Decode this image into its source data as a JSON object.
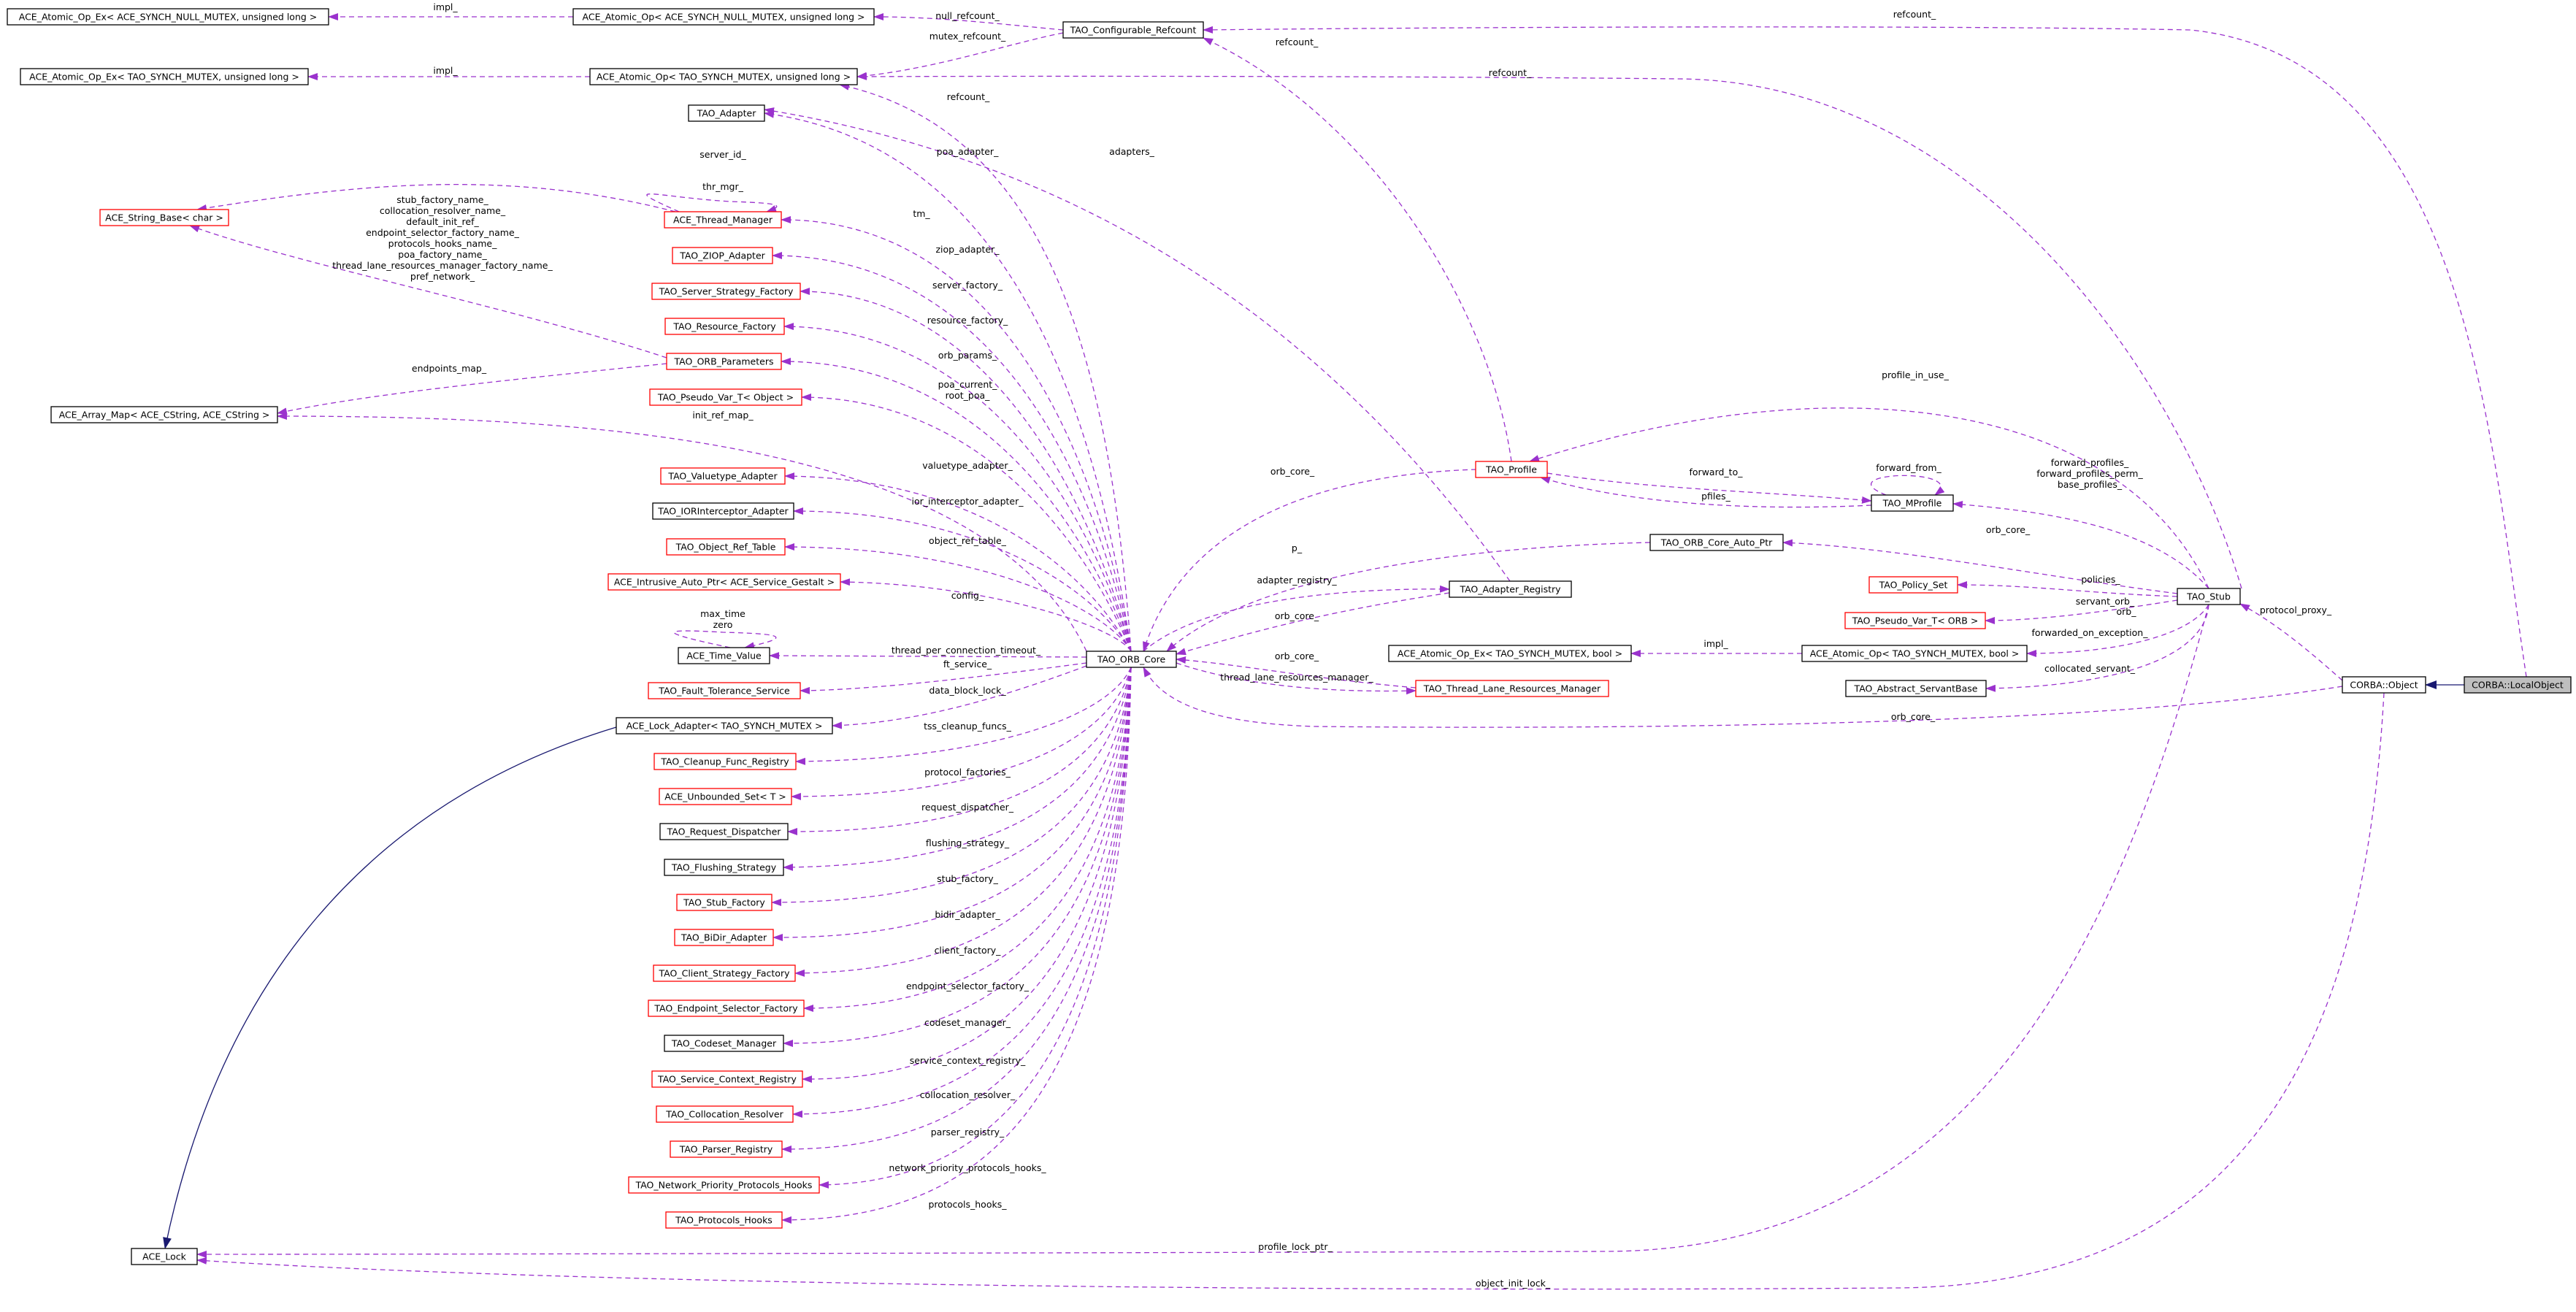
{
  "colors": {
    "class_border_complete": "#000000",
    "class_border_incomplete": "#ff0000",
    "focus_fill": "#bfbfbf",
    "dependency_edge": "#9a32cd",
    "inheritance_edge": "#191970"
  },
  "diagram": {
    "nodes": [
      {
        "id": "ace_aoe_null",
        "label": "ACE_Atomic_Op_Ex< ACE_SYNCH_NULL_MUTEX, unsigned long >",
        "style": "complete"
      },
      {
        "id": "ace_ao_null",
        "label": "ACE_Atomic_Op< ACE_SYNCH_NULL_MUTEX, unsigned long >",
        "style": "complete"
      },
      {
        "id": "tao_configurable_refcount",
        "label": "TAO_Configurable_Refcount",
        "style": "complete"
      },
      {
        "id": "ace_aoe_synch",
        "label": "ACE_Atomic_Op_Ex< TAO_SYNCH_MUTEX, unsigned long >",
        "style": "complete"
      },
      {
        "id": "ace_ao_synch",
        "label": "ACE_Atomic_Op< TAO_SYNCH_MUTEX, unsigned long >",
        "style": "complete"
      },
      {
        "id": "tao_adapter",
        "label": "TAO_Adapter",
        "style": "complete"
      },
      {
        "id": "ace_string_base",
        "label": "ACE_String_Base< char >",
        "style": "incomplete"
      },
      {
        "id": "ace_thread_manager",
        "label": "ACE_Thread_Manager",
        "style": "incomplete"
      },
      {
        "id": "tao_ziop_adapter",
        "label": "TAO_ZIOP_Adapter",
        "style": "incomplete"
      },
      {
        "id": "tao_server_strategy_factory",
        "label": "TAO_Server_Strategy_Factory",
        "style": "incomplete"
      },
      {
        "id": "tao_resource_factory",
        "label": "TAO_Resource_Factory",
        "style": "incomplete"
      },
      {
        "id": "tao_orb_parameters",
        "label": "TAO_ORB_Parameters",
        "style": "incomplete"
      },
      {
        "id": "ace_array_map",
        "label": "ACE_Array_Map< ACE_CString, ACE_CString >",
        "style": "complete"
      },
      {
        "id": "tao_pseudo_var_object",
        "label": "TAO_Pseudo_Var_T< Object >",
        "style": "incomplete"
      },
      {
        "id": "tao_valuetype_adapter",
        "label": "TAO_Valuetype_Adapter",
        "style": "incomplete"
      },
      {
        "id": "tao_ior_interceptor_adapter",
        "label": "TAO_IORInterceptor_Adapter",
        "style": "complete"
      },
      {
        "id": "tao_object_ref_table",
        "label": "TAO_Object_Ref_Table",
        "style": "incomplete"
      },
      {
        "id": "ace_intrusive_auto_ptr",
        "label": "ACE_Intrusive_Auto_Ptr< ACE_Service_Gestalt >",
        "style": "incomplete"
      },
      {
        "id": "ace_time_value",
        "label": "ACE_Time_Value",
        "style": "complete"
      },
      {
        "id": "tao_fault_tolerance_service",
        "label": "TAO_Fault_Tolerance_Service",
        "style": "incomplete"
      },
      {
        "id": "ace_lock_adapter",
        "label": "ACE_Lock_Adapter< TAO_SYNCH_MUTEX >",
        "style": "complete"
      },
      {
        "id": "tao_cleanup_func_registry",
        "label": "TAO_Cleanup_Func_Registry",
        "style": "incomplete"
      },
      {
        "id": "ace_unbounded_set",
        "label": "ACE_Unbounded_Set< T >",
        "style": "incomplete"
      },
      {
        "id": "tao_request_dispatcher",
        "label": "TAO_Request_Dispatcher",
        "style": "complete"
      },
      {
        "id": "tao_flushing_strategy",
        "label": "TAO_Flushing_Strategy",
        "style": "complete"
      },
      {
        "id": "tao_stub_factory",
        "label": "TAO_Stub_Factory",
        "style": "incomplete"
      },
      {
        "id": "tao_bidir_adapter",
        "label": "TAO_BiDir_Adapter",
        "style": "incomplete"
      },
      {
        "id": "tao_client_strategy_factory",
        "label": "TAO_Client_Strategy_Factory",
        "style": "incomplete"
      },
      {
        "id": "tao_endpoint_selector_factory",
        "label": "TAO_Endpoint_Selector_Factory",
        "style": "incomplete"
      },
      {
        "id": "tao_codeset_manager",
        "label": "TAO_Codeset_Manager",
        "style": "complete"
      },
      {
        "id": "tao_service_context_registry",
        "label": "TAO_Service_Context_Registry",
        "style": "incomplete"
      },
      {
        "id": "tao_collocation_resolver",
        "label": "TAO_Collocation_Resolver",
        "style": "incomplete"
      },
      {
        "id": "tao_parser_registry",
        "label": "TAO_Parser_Registry",
        "style": "incomplete"
      },
      {
        "id": "tao_network_priority_protocols_hooks",
        "label": "TAO_Network_Priority_Protocols_Hooks",
        "style": "incomplete"
      },
      {
        "id": "tao_protocols_hooks",
        "label": "TAO_Protocols_Hooks",
        "style": "incomplete"
      },
      {
        "id": "ace_lock",
        "label": "ACE_Lock",
        "style": "complete"
      },
      {
        "id": "tao_orb_core",
        "label": "TAO_ORB_Core",
        "style": "complete"
      },
      {
        "id": "tao_profile",
        "label": "TAO_Profile",
        "style": "incomplete"
      },
      {
        "id": "tao_mprofile",
        "label": "TAO_MProfile",
        "style": "complete"
      },
      {
        "id": "tao_orb_core_auto_ptr",
        "label": "TAO_ORB_Core_Auto_Ptr",
        "style": "complete"
      },
      {
        "id": "tao_adapter_registry",
        "label": "TAO_Adapter_Registry",
        "style": "complete"
      },
      {
        "id": "tao_thread_lane_resources_manager",
        "label": "TAO_Thread_Lane_Resources_Manager",
        "style": "incomplete"
      },
      {
        "id": "ace_aoe_bool",
        "label": "ACE_Atomic_Op_Ex< TAO_SYNCH_MUTEX, bool >",
        "style": "complete"
      },
      {
        "id": "ace_ao_bool",
        "label": "ACE_Atomic_Op< TAO_SYNCH_MUTEX, bool >",
        "style": "complete"
      },
      {
        "id": "tao_policy_set",
        "label": "TAO_Policy_Set",
        "style": "incomplete"
      },
      {
        "id": "tao_pseudo_var_orb",
        "label": "TAO_Pseudo_Var_T< ORB >",
        "style": "incomplete"
      },
      {
        "id": "tao_abstract_servantbase",
        "label": "TAO_Abstract_ServantBase",
        "style": "complete"
      },
      {
        "id": "tao_stub",
        "label": "TAO_Stub",
        "style": "complete"
      },
      {
        "id": "corba_object",
        "label": "CORBA::Object",
        "style": "complete"
      },
      {
        "id": "corba_localobject",
        "label": "CORBA::LocalObject",
        "style": "focus"
      }
    ],
    "edge_labels": [
      {
        "id": "el_impl_1",
        "text": "impl_"
      },
      {
        "id": "el_null_refcount",
        "text": "null_refcount_"
      },
      {
        "id": "el_refcount_top",
        "text": "refcount_"
      },
      {
        "id": "el_impl_2",
        "text": "impl_"
      },
      {
        "id": "el_mutex_refcount",
        "text": "mutex_refcount_"
      },
      {
        "id": "el_refcount_mid",
        "text": "refcount_"
      },
      {
        "id": "el_refcount_prof",
        "text": "refcount_"
      },
      {
        "id": "el_refcount_orb",
        "text": "refcount_"
      },
      {
        "id": "el_poa_adapter",
        "text": "poa_adapter_"
      },
      {
        "id": "el_adapters",
        "text": "adapters_"
      },
      {
        "id": "el_server_id",
        "text": "server_id_"
      },
      {
        "id": "el_thr_mgr",
        "text": "thr_mgr_"
      },
      {
        "id": "el_tm",
        "text": "tm_"
      },
      {
        "id": "el_strparams_1",
        "text": "stub_factory_name_"
      },
      {
        "id": "el_strparams_2",
        "text": "collocation_resolver_name_"
      },
      {
        "id": "el_strparams_3",
        "text": "default_init_ref_"
      },
      {
        "id": "el_strparams_4",
        "text": "endpoint_selector_factory_name_"
      },
      {
        "id": "el_strparams_5",
        "text": "protocols_hooks_name_"
      },
      {
        "id": "el_strparams_6",
        "text": "poa_factory_name_"
      },
      {
        "id": "el_strparams_7",
        "text": "thread_lane_resources_manager_factory_name_"
      },
      {
        "id": "el_strparams_8",
        "text": "pref_network_"
      },
      {
        "id": "el_ziop_adapter",
        "text": "ziop_adapter_"
      },
      {
        "id": "el_server_factory",
        "text": "server_factory_"
      },
      {
        "id": "el_resource_factory",
        "text": "resource_factory_"
      },
      {
        "id": "el_orb_params",
        "text": "orb_params_"
      },
      {
        "id": "el_endpoints_map",
        "text": "endpoints_map_"
      },
      {
        "id": "el_poa_current",
        "text": "poa_current_"
      },
      {
        "id": "el_root_poa",
        "text": "root_poa_"
      },
      {
        "id": "el_init_ref_map",
        "text": "init_ref_map_"
      },
      {
        "id": "el_valuetype_adapter",
        "text": "valuetype_adapter_"
      },
      {
        "id": "el_ior_interceptor_adapter",
        "text": "ior_interceptor_adapter_"
      },
      {
        "id": "el_object_ref_table",
        "text": "object_ref_table_"
      },
      {
        "id": "el_config",
        "text": "config_"
      },
      {
        "id": "el_max_time",
        "text": "max_time"
      },
      {
        "id": "el_zero",
        "text": "zero"
      },
      {
        "id": "el_thread_per_connection_timeout",
        "text": "thread_per_connection_timeout_"
      },
      {
        "id": "el_ft_service",
        "text": "ft_service_"
      },
      {
        "id": "el_data_block_lock",
        "text": "data_block_lock_"
      },
      {
        "id": "el_tss_cleanup_funcs",
        "text": "tss_cleanup_funcs_"
      },
      {
        "id": "el_protocol_factories",
        "text": "protocol_factories_"
      },
      {
        "id": "el_request_dispatcher",
        "text": "request_dispatcher_"
      },
      {
        "id": "el_flushing_strategy",
        "text": "flushing_strategy_"
      },
      {
        "id": "el_stub_factory",
        "text": "stub_factory_"
      },
      {
        "id": "el_bidir_adapter",
        "text": "bidir_adapter_"
      },
      {
        "id": "el_client_factory",
        "text": "client_factory_"
      },
      {
        "id": "el_endpoint_selector_factory",
        "text": "endpoint_selector_factory_"
      },
      {
        "id": "el_codeset_manager",
        "text": "codeset_manager_"
      },
      {
        "id": "el_service_context_registry",
        "text": "service_context_registry_"
      },
      {
        "id": "el_collocation_resolver",
        "text": "collocation_resolver_"
      },
      {
        "id": "el_parser_registry",
        "text": "parser_registry_"
      },
      {
        "id": "el_network_priority_protocols_hooks",
        "text": "network_priority_protocols_hooks_"
      },
      {
        "id": "el_protocols_hooks",
        "text": "protocols_hooks_"
      },
      {
        "id": "el_profile_in_use",
        "text": "profile_in_use_"
      },
      {
        "id": "el_orb_core_prof",
        "text": "orb_core_"
      },
      {
        "id": "el_forward_to",
        "text": "forward_to_"
      },
      {
        "id": "el_forward_from",
        "text": "forward_from_"
      },
      {
        "id": "el_pfiles",
        "text": "pfiles_"
      },
      {
        "id": "el_fwd_profiles_1",
        "text": "forward_profiles_"
      },
      {
        "id": "el_fwd_profiles_2",
        "text": "forward_profiles_perm_"
      },
      {
        "id": "el_fwd_profiles_3",
        "text": "base_profiles_"
      },
      {
        "id": "el_p",
        "text": "p_"
      },
      {
        "id": "el_orb_core_autoptr",
        "text": "orb_core_"
      },
      {
        "id": "el_adapter_registry",
        "text": "adapter_registry_"
      },
      {
        "id": "el_orb_core_adreg",
        "text": "orb_core_"
      },
      {
        "id": "el_policies",
        "text": "policies_"
      },
      {
        "id": "el_servant_orb",
        "text": "servant_orb_"
      },
      {
        "id": "el_orb",
        "text": "orb_"
      },
      {
        "id": "el_protocol_proxy",
        "text": "protocol_proxy_"
      },
      {
        "id": "el_orb_core_thread",
        "text": "orb_core_"
      },
      {
        "id": "el_thread_lane_resources_manager",
        "text": "thread_lane_resources_manager_"
      },
      {
        "id": "el_impl_3",
        "text": "impl_"
      },
      {
        "id": "el_forwarded_on_exception",
        "text": "forwarded_on_exception_"
      },
      {
        "id": "el_collocated_servant",
        "text": "collocated_servant_"
      },
      {
        "id": "el_orb_core_object",
        "text": "orb_core_"
      },
      {
        "id": "el_profile_lock_ptr",
        "text": "profile_lock_ptr_"
      },
      {
        "id": "el_object_init_lock",
        "text": "object_init_lock_"
      }
    ]
  }
}
